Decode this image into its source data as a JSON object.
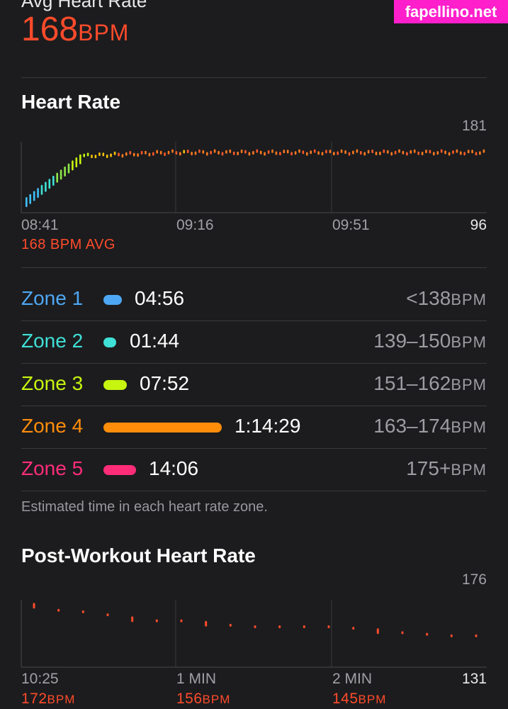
{
  "header": {
    "label": "Avg Heart Rate",
    "value": "168",
    "unit": "BPM"
  },
  "watermark": "fapellino.net",
  "heart_rate": {
    "title": "Heart Rate",
    "avg_note": "168 BPM AVG",
    "chart_data": {
      "type": "bar",
      "ylim": [
        96,
        181
      ],
      "y_tick_labels": {
        "max": "181",
        "min": "96"
      },
      "x_tick_labels": [
        "08:41",
        "09:16",
        "09:51"
      ],
      "grid": true
    }
  },
  "zones": {
    "items": [
      {
        "name": "Zone 1",
        "time": "04:56",
        "range": "<138",
        "unit": "BPM",
        "color": "#4ea7f5",
        "minutes": 4.93
      },
      {
        "name": "Zone 2",
        "time": "01:44",
        "range": "139–150",
        "unit": "BPM",
        "color": "#3fe0d6",
        "minutes": 1.73
      },
      {
        "name": "Zone 3",
        "time": "07:52",
        "range": "151–162",
        "unit": "BPM",
        "color": "#c7f50f",
        "minutes": 7.87
      },
      {
        "name": "Zone 4",
        "time": "1:14:29",
        "range": "163–174",
        "unit": "BPM",
        "color": "#ff8d0a",
        "minutes": 74.48
      },
      {
        "name": "Zone 5",
        "time": "14:06",
        "range": "175+",
        "unit": "BPM",
        "color": "#ff2d78",
        "minutes": 14.1
      }
    ],
    "footnote": "Estimated time in each heart rate zone."
  },
  "post_workout": {
    "title": "Post-Workout Heart Rate",
    "chart_data": {
      "type": "scatter",
      "ylim": [
        131,
        176
      ],
      "y_tick_labels": {
        "max": "176",
        "min": "131"
      },
      "x_tick_labels": [
        "10:25",
        "1 MIN",
        "2 MIN"
      ],
      "points_bpm": [
        172,
        169,
        168,
        166,
        163,
        162,
        162,
        160,
        159,
        158,
        158,
        158,
        158,
        157,
        155,
        154,
        153,
        152,
        152
      ],
      "values": [
        {
          "value": "172",
          "unit": "BPM"
        },
        {
          "value": "156",
          "unit": "BPM"
        },
        {
          "value": "145",
          "unit": "BPM"
        }
      ],
      "grid": true
    }
  }
}
